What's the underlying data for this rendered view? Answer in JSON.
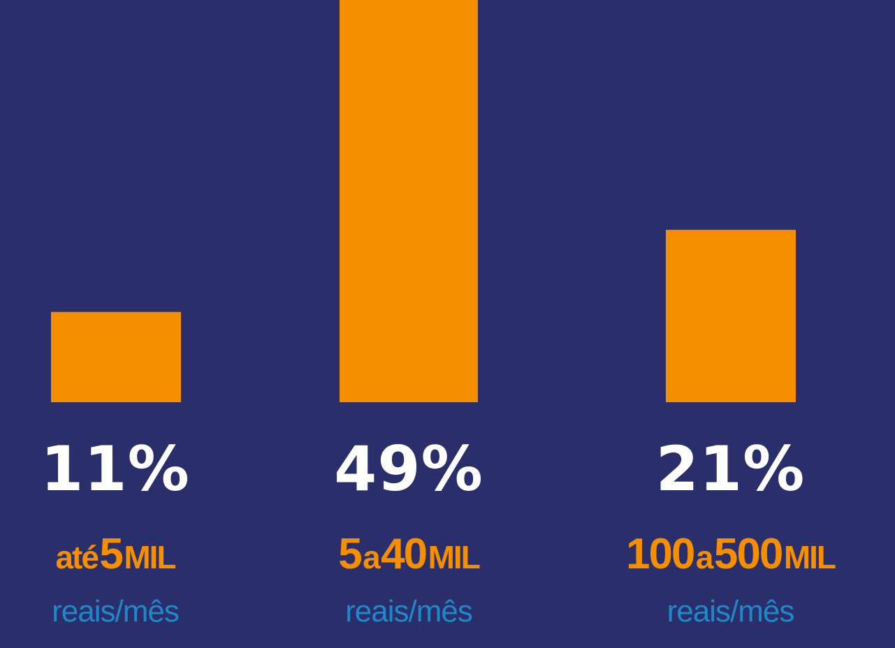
{
  "colors": {
    "background": "#2a2f6b",
    "bar": "#f68f00",
    "percent_text": "#ffffff",
    "category_text": "#f68f00",
    "subtitle_text": "#1e88c8"
  },
  "chart_data": {
    "type": "bar",
    "title": "",
    "xlabel": "",
    "ylabel": "",
    "ylim": [
      0,
      49
    ],
    "grid": false,
    "legend": "none",
    "categories": [
      "até 5 MIL",
      "5 a 40 MIL",
      "100 a 500 MIL"
    ],
    "values": [
      11,
      49,
      21
    ],
    "value_labels": [
      "11%",
      "49%",
      "21%"
    ],
    "category_parts": [
      [
        {
          "text": "até",
          "size": "small"
        },
        {
          "text": "5",
          "size": "big"
        },
        {
          "text": "MIL",
          "size": "unit"
        }
      ],
      [
        {
          "text": "5",
          "size": "big"
        },
        {
          "text": "a",
          "size": "small"
        },
        {
          "text": "40",
          "size": "big"
        },
        {
          "text": "MIL",
          "size": "unit"
        }
      ],
      [
        {
          "text": "100",
          "size": "big"
        },
        {
          "text": "a",
          "size": "small"
        },
        {
          "text": "500",
          "size": "big"
        },
        {
          "text": "MIL",
          "size": "unit"
        }
      ]
    ],
    "sublabels": [
      "reais/mês",
      "reais/mês",
      "reais/mês"
    ]
  }
}
